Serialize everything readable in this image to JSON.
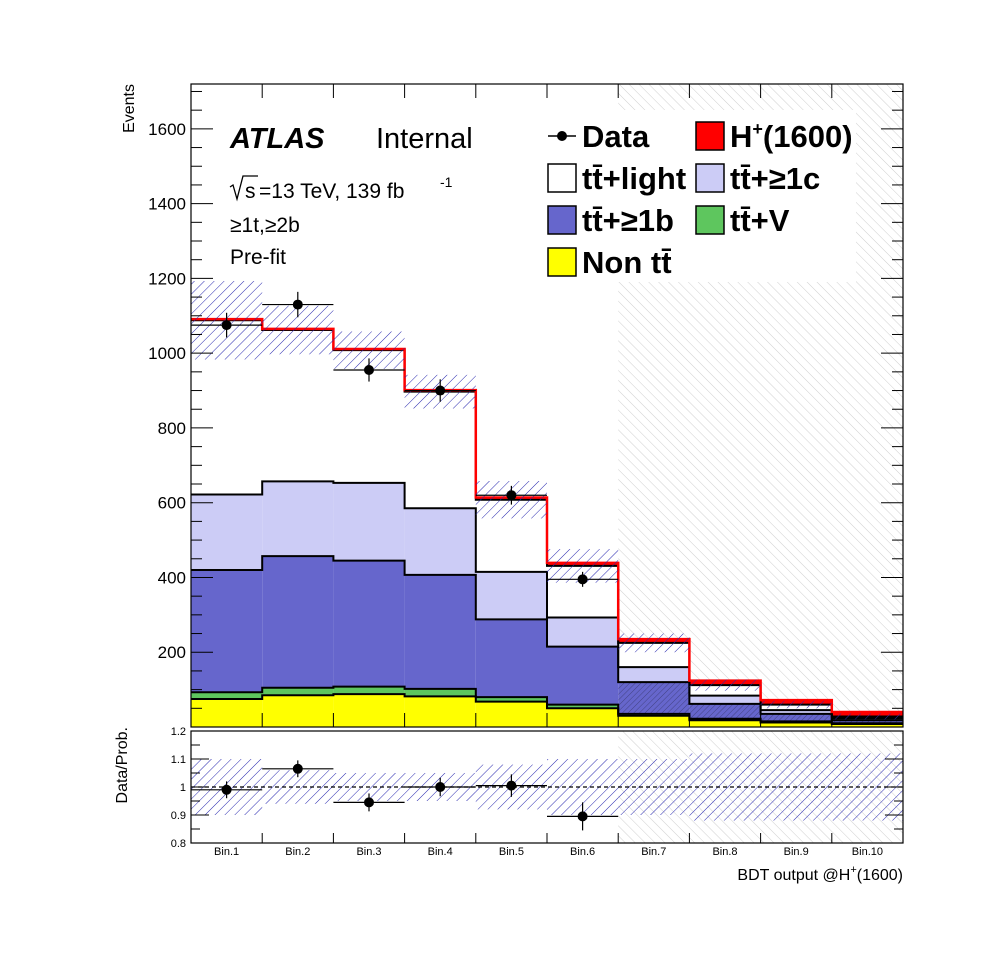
{
  "chart_data": {
    "type": "bar",
    "experiment": "ATLAS",
    "status": "Internal",
    "sqrt_s": "s",
    "energy_lumi": "=13 TeV, 139 fb",
    "lumi_exp": "-1",
    "region": "≥1t,≥2b",
    "fit_state": "Pre-fit",
    "ylabel": "Events",
    "ratio_ylabel": "Data/Prob.",
    "xlabel": "BDT output @H",
    "xlabel_sup": "+",
    "xlabel_tail": "(1600)",
    "categories": [
      "Bin.1",
      "Bin.2",
      "Bin.3",
      "Bin.4",
      "Bin.5",
      "Bin.6",
      "Bin.7",
      "Bin.8",
      "Bin.9",
      "Bin.10"
    ],
    "ylim": [
      0,
      1720
    ],
    "yticks": [
      200,
      400,
      600,
      800,
      1000,
      1200,
      1400,
      1600
    ],
    "ratio_ylim": [
      0.8,
      1.2
    ],
    "ratio_yticks": [
      "0.8",
      "0.9",
      "1",
      "1.1",
      "1.2"
    ],
    "stack_order": [
      "Non tt̄",
      "tt̄+V",
      "tt̄+≥1b",
      "tt̄+≥1c",
      "tt̄+light",
      "H+(1600)"
    ],
    "series": [
      {
        "name": "Non tt̄",
        "color": "#ffff00",
        "values": [
          75,
          85,
          88,
          82,
          68,
          50,
          30,
          18,
          12,
          8
        ]
      },
      {
        "name": "tt̄+V",
        "color": "#5ec65e",
        "values": [
          18,
          20,
          20,
          20,
          12,
          10,
          5,
          4,
          3,
          2
        ]
      },
      {
        "name": "tt̄+≥1b",
        "color": "#6666cc",
        "values": [
          327,
          352,
          337,
          305,
          208,
          155,
          85,
          40,
          20,
          8
        ]
      },
      {
        "name": "tt̄+≥1c",
        "color": "#ccccf6",
        "values": [
          202,
          200,
          208,
          178,
          127,
          78,
          40,
          22,
          10,
          5
        ]
      },
      {
        "name": "tt̄+light",
        "color": "#ffffff",
        "values": [
          466,
          405,
          355,
          312,
          193,
          138,
          65,
          28,
          15,
          5
        ]
      },
      {
        "name": "H+(1600)",
        "color": "#ff0000",
        "values": [
          3,
          3,
          3,
          4,
          6,
          8,
          10,
          12,
          12,
          12
        ]
      }
    ],
    "data": {
      "name": "Data",
      "values": [
        1075,
        1130,
        955,
        900,
        620,
        395
      ],
      "errors": [
        33,
        34,
        31,
        30,
        25,
        20
      ]
    },
    "uncertainty_half_width": [
      105,
      65,
      50,
      45,
      50,
      45,
      25,
      15,
      10,
      8
    ],
    "blinded_from_bin": 7,
    "ratio": {
      "values": [
        0.99,
        1.065,
        0.945,
        1.0,
        1.005,
        0.895
      ],
      "errors": [
        0.03,
        0.03,
        0.032,
        0.033,
        0.04,
        0.05
      ],
      "band": [
        0.1,
        0.06,
        0.05,
        0.05,
        0.08,
        0.1,
        0.1,
        0.12,
        0.12,
        0.12
      ]
    },
    "legend_position": "top-right",
    "legend": [
      {
        "label": "Data",
        "type": "marker",
        "plain": true
      },
      {
        "label": "H",
        "sup": "+",
        "tail": "(1600)",
        "color": "#ff0000"
      },
      {
        "label": "tt̄+light",
        "color": "#ffffff"
      },
      {
        "label": "tt̄+≥1c",
        "color": "#ccccf6"
      },
      {
        "label": "tt̄+≥1b",
        "color": "#6666cc"
      },
      {
        "label": "tt̄+V",
        "color": "#5ec65e"
      },
      {
        "label": "Non tt̄",
        "color": "#ffff00"
      }
    ]
  }
}
